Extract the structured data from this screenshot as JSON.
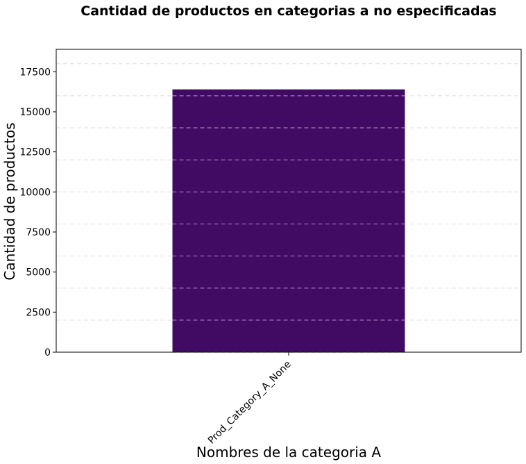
{
  "chart_data": {
    "type": "bar",
    "title": "Cantidad de productos en categorias a no especificadas",
    "xlabel": "Nombres de la categoria A",
    "ylabel": "Cantidad de productos",
    "categories": [
      "Prod_Category_A_None"
    ],
    "values": [
      16400
    ],
    "ylim": [
      0,
      18900
    ],
    "yticks": [
      0,
      2500,
      5000,
      7500,
      10000,
      12500,
      15000,
      17500
    ],
    "yticklabels": [
      "0",
      "2500",
      "5000",
      "7500",
      "10000",
      "12500",
      "15000",
      "17500"
    ],
    "grid": true,
    "legend": "none",
    "colors": {
      "bar": "#420b63",
      "grid": "#dddddd",
      "grid_on_bar": "#a07ab8",
      "axes": "#000000"
    }
  }
}
